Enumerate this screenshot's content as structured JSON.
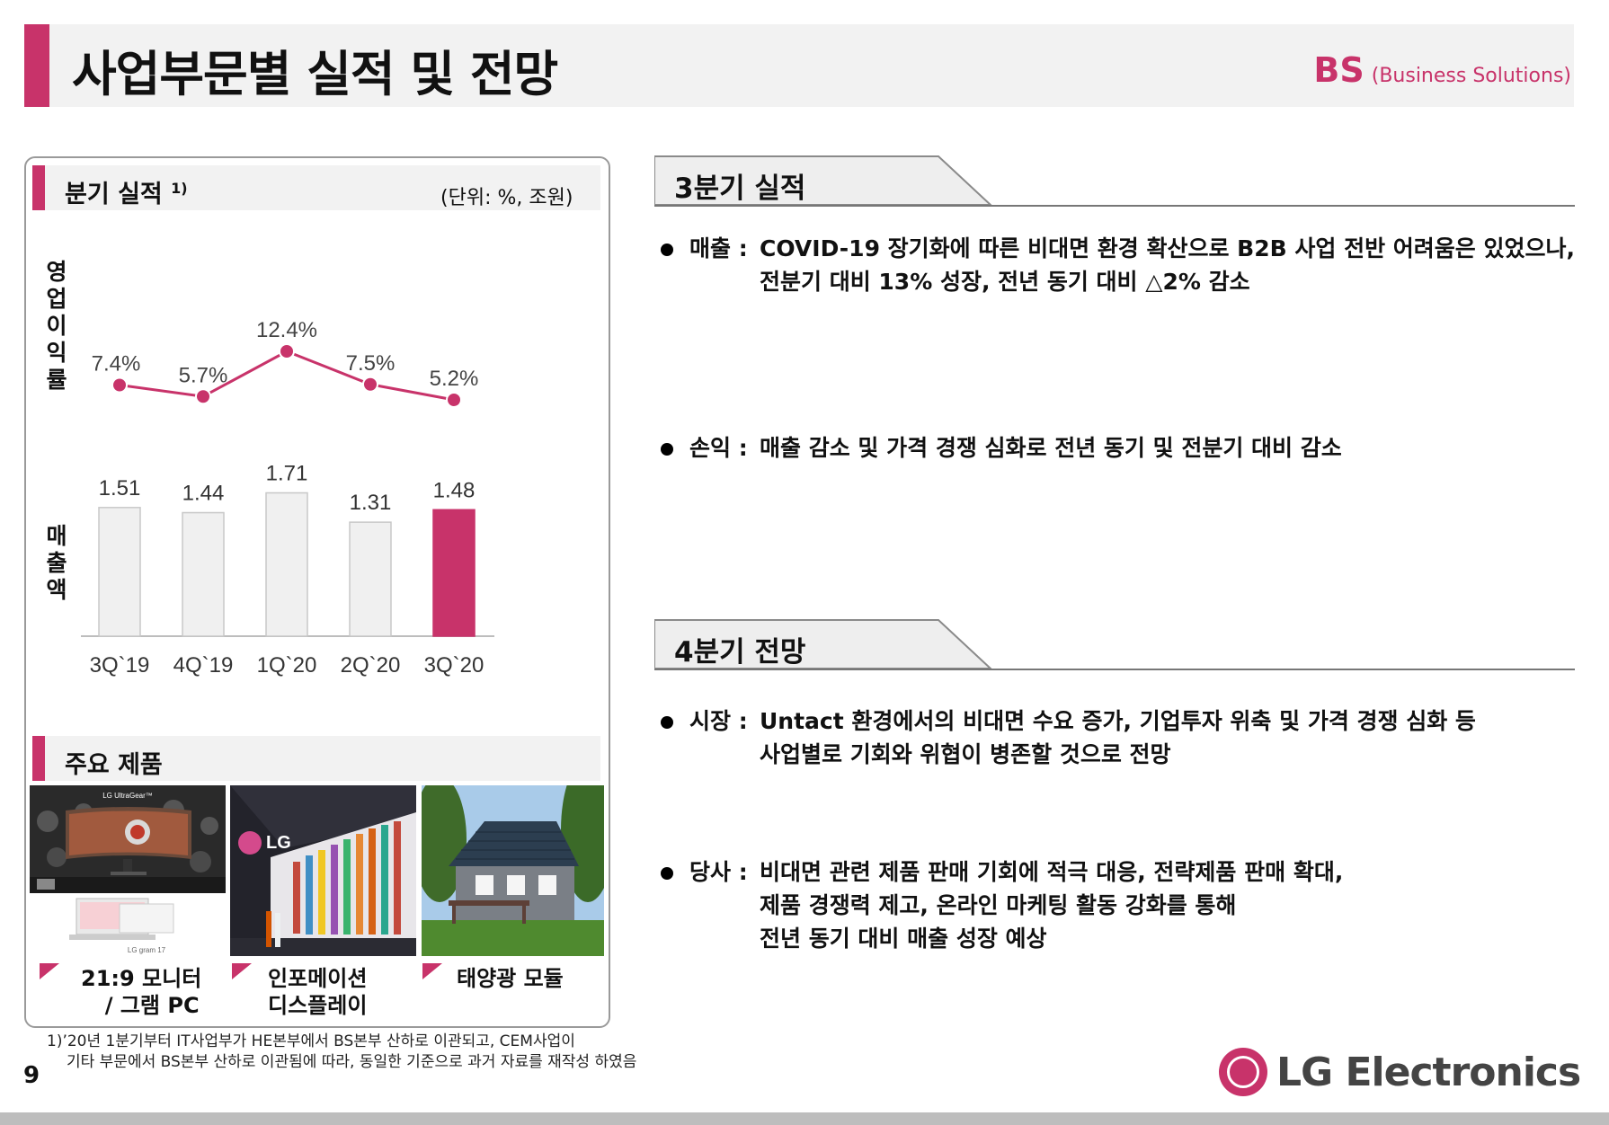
{
  "header": {
    "title": "사업부문별 실적 및 전망",
    "bs_abbr": "BS",
    "bs_full": "(Business Solutions)"
  },
  "left_panel": {
    "quarterly_title": "분기 실적",
    "quarterly_footnote_mark": "1)",
    "unit": "(단위: %, 조원)",
    "op_margin_label": "영업이익률",
    "sales_label": "매출액",
    "products_title": "주요 제품",
    "products": [
      {
        "line1": "21:9 모니터",
        "line2": "/ 그램 PC"
      },
      {
        "line1": "인포메이션",
        "line2": "디스플레이"
      },
      {
        "line1": "태양광 모듈",
        "line2": ""
      }
    ],
    "monitor_brand": "LG UltraGear™",
    "gram_brand": "LG gram 17",
    "signage_brand": "LG"
  },
  "chart_data": {
    "type": "bar",
    "categories": [
      "3Q`19",
      "4Q`19",
      "1Q`20",
      "2Q`20",
      "3Q`20"
    ],
    "series": [
      {
        "name": "매출액",
        "type": "bar",
        "values": [
          1.51,
          1.44,
          1.71,
          1.31,
          1.48
        ],
        "labels": [
          "1.51",
          "1.44",
          "1.71",
          "1.31",
          "1.48"
        ]
      },
      {
        "name": "영업이익률",
        "type": "line",
        "values": [
          7.4,
          5.7,
          12.4,
          7.5,
          5.2
        ],
        "labels": [
          "7.4%",
          "5.7%",
          "12.4%",
          "7.5%",
          "5.2%"
        ]
      }
    ],
    "colors": {
      "bar": "#f0f0f0",
      "bar_highlight": "#c8336a",
      "line": "#c8336a"
    },
    "highlight_index": 4
  },
  "right": {
    "q3_title": "3분기 실적",
    "q3_items": [
      {
        "label": "매출 :",
        "lines": [
          "COVID-19 장기화에 따른 비대면 환경 확산으로 B2B 사업 전반 어려움은 있었으나,",
          "전분기 대비 13% 성장, 전년 동기 대비 △2% 감소"
        ]
      },
      {
        "label": "손익 :",
        "lines": [
          "매출 감소 및 가격 경쟁 심화로 전년 동기 및 전분기 대비 감소"
        ]
      }
    ],
    "q4_title": "4분기 전망",
    "q4_items": [
      {
        "label": "시장 :",
        "lines": [
          "Untact 환경에서의 비대면 수요 증가, 기업투자 위축 및 가격 경쟁 심화 등",
          "사업별로 기회와 위협이 병존할 것으로 전망"
        ]
      },
      {
        "label": "당사 :",
        "lines": [
          "비대면 관련 제품 판매 기회에 적극 대응, 전략제품 판매 확대,",
          "제품 경쟁력 제고, 온라인 마케팅 활동 강화를 통해",
          "전년 동기 대비 매출 성장 예상"
        ]
      }
    ]
  },
  "footer": {
    "footnote_line1": "1)’20년 1분기부터 IT사업부가 HE본부에서 BS본부 산하로 이관되고, CEM사업이",
    "footnote_line2": "기타 부문에서 BS본부 산하로 이관됨에 따라, 동일한 기준으로 과거 자료를 재작성 하였음",
    "page_number": "9",
    "company": "LG Electronics"
  },
  "colors": {
    "accent": "#c8336a",
    "header_band": "#f2f2f2"
  }
}
